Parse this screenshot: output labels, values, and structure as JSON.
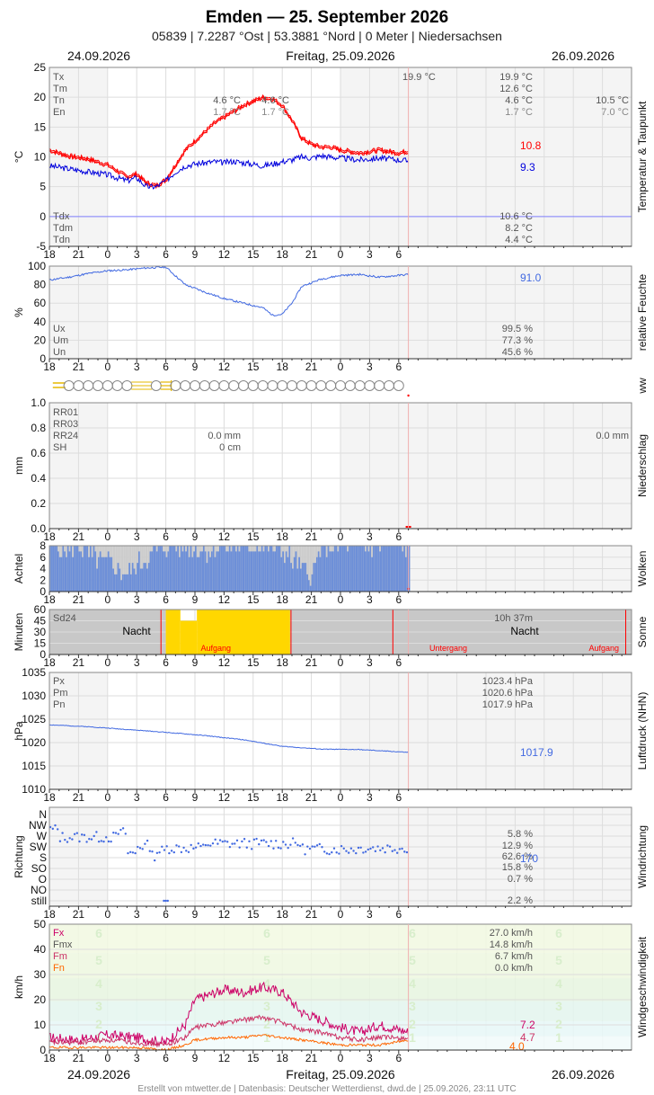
{
  "header": {
    "title": "Emden  —  25. September 2026",
    "subtitle": "05839  |  7.2287 °Ost  |  53.3881 °Nord  |  0 Meter  |  Niedersachsen",
    "date_left": "24.09.2026",
    "date_center": "Freitag, 25.09.2026",
    "date_right": "26.09.2026"
  },
  "footer": "Erstellt von mtwetter.de | Datenbasis: Deutscher Wetterdienst, dwd.de | 25.09.2026, 23:11 UTC",
  "x_axis": {
    "start_hour": 18,
    "end_hour": 78,
    "tick_labels": [
      "18",
      "21",
      "0",
      "3",
      "6",
      "9",
      "12",
      "15",
      "18",
      "21",
      "0",
      "3",
      "6"
    ]
  },
  "colors": {
    "red": "#ff0000",
    "blue": "#0000dd",
    "lightblue": "#4169e1",
    "sun": "#ffd700",
    "cloud": "#6d8fd8",
    "magenta": "#cc0066",
    "orange": "#ff6600",
    "wx": "#e6b800"
  },
  "panels": {
    "temperature": {
      "side_label": "Temperatur & Taupunkt",
      "ylabel": "°C",
      "ylim": [
        -5,
        25
      ],
      "ticks": [
        -5,
        0,
        5,
        10,
        15,
        20,
        25
      ],
      "labels_top": [
        "Tx",
        "Tm",
        "Tn",
        "En"
      ],
      "values_top": [
        "19.9 °C",
        "12.6 °C",
        "4.6 °C",
        "1.7 °C"
      ],
      "values_prev": [
        "",
        "",
        "4.6 °C",
        "1.7 °C"
      ],
      "values_prev2": [
        "",
        "",
        "4.6 °C",
        "1.7 °C"
      ],
      "values_next": [
        "",
        "",
        "10.5 °C",
        "7.0 °C"
      ],
      "max_annotation": "19.9 °C",
      "labels_bottom": [
        "Tdx",
        "Tdm",
        "Tdn"
      ],
      "values_bottom": [
        "10.6 °C",
        "8.2 °C",
        "4.4 °C"
      ],
      "last_temp": "10.8",
      "last_dew": "9.3"
    },
    "humidity": {
      "side_label": "relative Feuchte",
      "ylabel": "%",
      "ylim": [
        0,
        100
      ],
      "ticks": [
        0,
        20,
        40,
        60,
        80,
        100
      ],
      "labels": [
        "Ux",
        "Um",
        "Un"
      ],
      "values": [
        "99.5 %",
        "77.3 %",
        "45.6 %"
      ],
      "last": "91.0"
    },
    "ww": {
      "side_label": "ww"
    },
    "precip": {
      "side_label": "Niederschlag",
      "ylabel": "mm",
      "ylim": [
        0,
        1.0
      ],
      "ticks": [
        "0.0",
        "0.2",
        "0.4",
        "0.6",
        "0.8",
        "1.0"
      ],
      "labels": [
        "RR01",
        "RR03",
        "RR24",
        "SH"
      ],
      "values_prev": [
        "",
        "",
        "0.0 mm",
        "0 cm"
      ],
      "values_next": [
        "",
        "",
        "0.0 mm",
        ""
      ]
    },
    "clouds": {
      "side_label": "Wolken",
      "ylabel": "Achtel",
      "ticks": [
        0,
        2,
        4,
        6,
        8
      ]
    },
    "sun": {
      "side_label": "Sonne",
      "ylabel": "Minuten",
      "ticks": [
        0,
        15,
        30,
        45,
        60
      ],
      "label": "Sd24",
      "total": "10h 37m",
      "night": "Nacht",
      "sunrise": "Aufgang",
      "sunset": "Untergang"
    },
    "pressure": {
      "side_label": "Luftdruck (NHN)",
      "ylabel": "hPa",
      "ylim": [
        1010,
        1035
      ],
      "ticks": [
        1010,
        1015,
        1020,
        1025,
        1030,
        1035
      ],
      "labels": [
        "Px",
        "Pm",
        "Pn"
      ],
      "values": [
        "1023.4 hPa",
        "1020.6 hPa",
        "1017.9 hPa"
      ],
      "last": "1017.9"
    },
    "wind_dir": {
      "side_label": "Windrichtung",
      "ylabel": "Richtung",
      "categories": [
        "still",
        "NO",
        "O",
        "SO",
        "S",
        "SW",
        "W",
        "NW",
        "N"
      ],
      "freq_labels": [
        "5.8 %",
        "12.9 %",
        "62.6 %",
        "15.8 %",
        "0.7 %",
        "2.2 %"
      ],
      "last": "170"
    },
    "wind_speed": {
      "side_label": "Windgeschwindigkeit",
      "ylabel": "km/h",
      "ylim": [
        0,
        50
      ],
      "ticks": [
        0,
        10,
        20,
        30,
        40,
        50
      ],
      "labels": [
        "Fx",
        "Fmx",
        "Fm",
        "Fn"
      ],
      "values": [
        "27.0 km/h",
        "14.8 km/h",
        "6.7 km/h",
        "0.0 km/h"
      ],
      "bft": [
        "1",
        "2",
        "3",
        "4",
        "5",
        "6"
      ],
      "last_fx": "7.2",
      "last_fm": "4.7",
      "last_fn": "4.0"
    }
  },
  "chart_data": [
    {
      "type": "line",
      "title": "Temperatur & Taupunkt",
      "ylabel": "°C",
      "ylim": [
        -5,
        25
      ],
      "x": [
        18,
        20,
        22,
        24,
        26,
        27,
        28,
        29,
        30,
        31,
        32,
        33,
        34,
        35,
        36,
        37,
        38,
        39,
        40,
        41,
        42,
        43,
        44,
        45,
        46,
        47,
        48,
        50,
        52,
        54,
        55
      ],
      "series": [
        {
          "name": "T",
          "values": [
            11.0,
            10.0,
            9.5,
            8.5,
            6.5,
            7.0,
            5.5,
            5.0,
            6.0,
            8.5,
            11.0,
            12.5,
            14.0,
            15.5,
            16.5,
            17.5,
            18.5,
            19.2,
            19.8,
            19.6,
            18.5,
            16.0,
            13.0,
            12.0,
            11.5,
            11.5,
            11.0,
            10.5,
            11.0,
            10.5,
            10.8
          ]
        },
        {
          "name": "Td",
          "values": [
            8.5,
            8.0,
            7.5,
            7.0,
            6.0,
            6.5,
            5.0,
            5.0,
            6.0,
            7.5,
            8.5,
            8.8,
            9.0,
            9.2,
            9.0,
            9.3,
            9.0,
            8.8,
            8.5,
            8.8,
            9.2,
            9.5,
            10.0,
            9.8,
            10.2,
            10.0,
            9.8,
            9.5,
            9.8,
            9.5,
            9.3
          ]
        }
      ]
    },
    {
      "type": "line",
      "title": "relative Feuchte",
      "ylabel": "%",
      "ylim": [
        0,
        100
      ],
      "x": [
        18,
        20,
        22,
        24,
        26,
        28,
        30,
        32,
        34,
        36,
        38,
        40,
        41,
        42,
        43,
        44,
        46,
        48,
        50,
        52,
        54,
        55
      ],
      "series": [
        {
          "name": "U",
          "values": [
            85,
            88,
            92,
            95,
            96,
            98,
            99,
            80,
            72,
            65,
            60,
            55,
            47,
            48,
            60,
            78,
            86,
            90,
            91,
            88,
            90,
            91
          ]
        }
      ]
    },
    {
      "type": "bar",
      "title": "Wolken",
      "ylabel": "Achtel",
      "x": [
        18,
        20,
        21,
        22,
        24,
        26,
        28,
        30,
        32,
        34,
        36,
        38,
        40,
        42,
        44,
        45,
        46,
        48,
        50,
        52,
        54,
        55
      ],
      "values": [
        8,
        7,
        8,
        6,
        5,
        3,
        6,
        8,
        8,
        7,
        8,
        8,
        8,
        7,
        4,
        3,
        8,
        8,
        8,
        8,
        8,
        8
      ]
    },
    {
      "type": "line",
      "title": "Luftdruck (NHN)",
      "ylabel": "hPa",
      "ylim": [
        1010,
        1035
      ],
      "x": [
        18,
        22,
        26,
        30,
        34,
        38,
        42,
        46,
        50,
        55
      ],
      "series": [
        {
          "name": "P",
          "values": [
            1023.8,
            1023.4,
            1022.8,
            1022.2,
            1021.5,
            1020.6,
            1019.2,
            1018.6,
            1018.5,
            1017.9
          ]
        }
      ]
    },
    {
      "type": "line",
      "title": "Windgeschwindigkeit",
      "ylabel": "km/h",
      "ylim": [
        0,
        50
      ],
      "x": [
        18,
        21,
        24,
        27,
        30,
        32,
        33,
        36,
        38,
        40,
        42,
        44,
        46,
        48,
        50,
        52,
        55
      ],
      "series": [
        {
          "name": "Fx",
          "values": [
            5,
            4,
            6,
            5,
            3,
            10,
            20,
            24,
            23,
            25,
            23,
            15,
            12,
            9,
            7,
            10,
            7.2
          ]
        },
        {
          "name": "Fm",
          "values": [
            3,
            3,
            4,
            3,
            2,
            5,
            9,
            11,
            12,
            13,
            11,
            8,
            7,
            5,
            4,
            5,
            4.7
          ]
        },
        {
          "name": "Fn",
          "values": [
            1,
            1,
            1,
            1,
            0,
            2,
            4,
            5,
            5,
            6,
            5,
            4,
            3,
            2,
            2,
            2,
            4.0
          ]
        }
      ]
    }
  ]
}
